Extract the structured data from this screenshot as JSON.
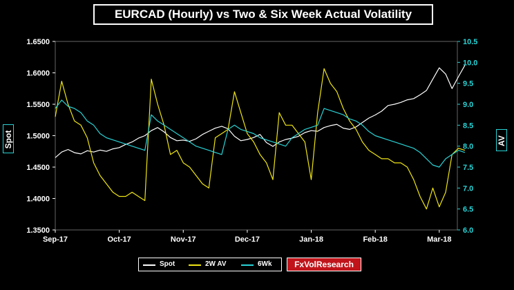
{
  "chart_data": {
    "type": "line",
    "title": "EURCAD (Hourly) vs Two & Six Week Actual Volatility",
    "x_tick_labels": [
      "Sep-17",
      "Oct-17",
      "Nov-17",
      "Dec-17",
      "Jan-18",
      "Feb-18",
      "Mar-18"
    ],
    "x_range": [
      "Sep-17",
      "Mar-18"
    ],
    "y_left": {
      "label": "Spot",
      "range": [
        1.35,
        1.65
      ],
      "ticks": [
        "1.3500",
        "1.4000",
        "1.4500",
        "1.5000",
        "1.5500",
        "1.6000",
        "1.6500"
      ]
    },
    "y_right": {
      "label": "AV",
      "range": [
        6.0,
        10.5
      ],
      "ticks": [
        "6.0",
        "6.5",
        "7.0",
        "7.5",
        "8.0",
        "8.5",
        "9.0",
        "9.5",
        "10.0",
        "10.5"
      ]
    },
    "grid": false,
    "legend_position": "bottom",
    "series": [
      {
        "name": "Spot",
        "axis": "left",
        "color": "#ffffff",
        "x": [
          0.0,
          0.1,
          0.2,
          0.3,
          0.4,
          0.5,
          0.6,
          0.7,
          0.8,
          0.9,
          1.0,
          1.1,
          1.2,
          1.3,
          1.4,
          1.5,
          1.6,
          1.7,
          1.8,
          1.9,
          2.0,
          2.1,
          2.2,
          2.3,
          2.4,
          2.5,
          2.6,
          2.7,
          2.8,
          2.9,
          3.0,
          3.1,
          3.2,
          3.3,
          3.4,
          3.5,
          3.6,
          3.7,
          3.8,
          3.9,
          4.0,
          4.1,
          4.2,
          4.3,
          4.4,
          4.5,
          4.6,
          4.7,
          4.8,
          4.9,
          5.0,
          5.1,
          5.2,
          5.3,
          5.4,
          5.5,
          5.6,
          5.7,
          5.8,
          5.9,
          6.0,
          6.1,
          6.2,
          6.3,
          6.4
        ],
        "y": [
          1.465,
          1.474,
          1.478,
          1.473,
          1.471,
          1.476,
          1.474,
          1.477,
          1.475,
          1.479,
          1.481,
          1.486,
          1.49,
          1.496,
          1.5,
          1.508,
          1.513,
          1.506,
          1.497,
          1.492,
          1.493,
          1.491,
          1.495,
          1.502,
          1.507,
          1.512,
          1.515,
          1.511,
          1.499,
          1.492,
          1.494,
          1.497,
          1.502,
          1.489,
          1.483,
          1.49,
          1.494,
          1.496,
          1.499,
          1.505,
          1.508,
          1.507,
          1.513,
          1.516,
          1.518,
          1.512,
          1.51,
          1.514,
          1.521,
          1.528,
          1.533,
          1.539,
          1.548,
          1.55,
          1.553,
          1.557,
          1.559,
          1.565,
          1.572,
          1.59,
          1.608,
          1.598,
          1.575,
          1.594,
          1.612
        ]
      },
      {
        "name": "2W AV",
        "axis": "right",
        "color": "#f0e614",
        "x": [
          0.0,
          0.1,
          0.2,
          0.3,
          0.4,
          0.5,
          0.6,
          0.7,
          0.8,
          0.9,
          1.0,
          1.1,
          1.2,
          1.3,
          1.4,
          1.5,
          1.6,
          1.7,
          1.8,
          1.9,
          2.0,
          2.1,
          2.2,
          2.3,
          2.4,
          2.5,
          2.6,
          2.7,
          2.8,
          2.9,
          3.0,
          3.1,
          3.2,
          3.3,
          3.4,
          3.5,
          3.6,
          3.7,
          3.8,
          3.9,
          4.0,
          4.1,
          4.2,
          4.3,
          4.4,
          4.5,
          4.6,
          4.7,
          4.8,
          4.9,
          5.0,
          5.1,
          5.2,
          5.3,
          5.4,
          5.5,
          5.6,
          5.7,
          5.8,
          5.9,
          6.0,
          6.1,
          6.2,
          6.3,
          6.4
        ],
        "y": [
          8.7,
          9.55,
          9.0,
          8.6,
          8.5,
          8.2,
          7.6,
          7.3,
          7.1,
          6.9,
          6.8,
          6.8,
          6.9,
          6.8,
          6.7,
          9.6,
          9.0,
          8.5,
          7.8,
          7.9,
          7.6,
          7.5,
          7.3,
          7.1,
          7.0,
          8.2,
          8.3,
          8.4,
          9.3,
          8.8,
          8.3,
          8.1,
          7.8,
          7.6,
          7.2,
          8.8,
          8.5,
          8.5,
          8.3,
          8.1,
          7.2,
          8.8,
          9.85,
          9.5,
          9.3,
          8.9,
          8.6,
          8.4,
          8.1,
          7.9,
          7.8,
          7.7,
          7.7,
          7.6,
          7.6,
          7.5,
          7.2,
          6.8,
          6.5,
          7.0,
          6.55,
          6.9,
          7.8,
          7.95,
          7.9
        ]
      },
      {
        "name": "6Wk",
        "axis": "right",
        "color": "#29d3d6",
        "x": [
          0.0,
          0.1,
          0.2,
          0.3,
          0.4,
          0.5,
          0.6,
          0.7,
          0.8,
          0.9,
          1.0,
          1.1,
          1.2,
          1.3,
          1.4,
          1.5,
          1.6,
          1.7,
          1.8,
          1.9,
          2.0,
          2.1,
          2.2,
          2.3,
          2.4,
          2.5,
          2.6,
          2.7,
          2.8,
          2.9,
          3.0,
          3.1,
          3.2,
          3.3,
          3.4,
          3.5,
          3.6,
          3.7,
          3.8,
          3.9,
          4.0,
          4.1,
          4.2,
          4.3,
          4.4,
          4.5,
          4.6,
          4.7,
          4.8,
          4.9,
          5.0,
          5.1,
          5.2,
          5.3,
          5.4,
          5.5,
          5.6,
          5.7,
          5.8,
          5.9,
          6.0,
          6.1,
          6.2,
          6.3,
          6.4
        ],
        "y": [
          8.9,
          9.1,
          8.95,
          8.9,
          8.8,
          8.6,
          8.5,
          8.3,
          8.2,
          8.15,
          8.1,
          8.05,
          8.0,
          7.95,
          7.9,
          8.75,
          8.6,
          8.5,
          8.4,
          8.3,
          8.2,
          8.1,
          8.0,
          7.95,
          7.9,
          7.85,
          7.8,
          8.4,
          8.5,
          8.4,
          8.35,
          8.3,
          8.2,
          8.15,
          8.1,
          8.05,
          8.0,
          8.2,
          8.3,
          8.4,
          8.45,
          8.5,
          8.9,
          8.85,
          8.8,
          8.75,
          8.65,
          8.6,
          8.5,
          8.35,
          8.25,
          8.2,
          8.15,
          8.1,
          8.05,
          8.0,
          7.95,
          7.85,
          7.7,
          7.55,
          7.5,
          7.7,
          7.8,
          7.9,
          7.85
        ]
      }
    ]
  },
  "brand": {
    "label": "FxVolResearch"
  }
}
